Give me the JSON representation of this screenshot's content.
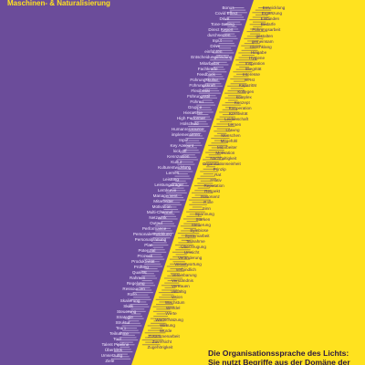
{
  "heading_top": "Maschinen- & Naturalisierung",
  "colors": {
    "purple": "#6b4c9a",
    "yellow": "#ffe21f",
    "light_text": "#f3e8ff",
    "dark_text": "#4a2f7a",
    "headline_text": "#2b1740"
  },
  "left_words": [
    "Bonus",
    "Covid Effect",
    "Drive",
    "Tone-Setting",
    "Direct Report",
    "durchsetzen",
    "Input",
    "Drive",
    "einführen",
    "Entscheidungsfindung",
    "Mitarbeiter",
    "Fachkräfte",
    "Feedback",
    "Führungskultur",
    "Führungskraft",
    "Flexibilität",
    "Führungsstil",
    "Führen",
    "Gruppe",
    "Hierarchie",
    "High Performer",
    "Holschuld",
    "Humanressource",
    "implementieren",
    "Input",
    "Key Account",
    "kick-off",
    "Kennzahlen",
    "Kultur",
    "Kulturentwicklung",
    "Lernen",
    "Leistung",
    "Leistungsträger",
    "Lernkurve",
    "Management",
    "Mitarbeiter",
    "Motivation",
    "Multi-Channel",
    "Netzwerk",
    "Output",
    "Performance",
    "Personalentwicklung",
    "Personalplanung",
    "Plan",
    "Potenzial",
    "Prozess",
    "Produktivität",
    "Prüfung",
    "Qualität",
    "Rahmen",
    "Regelung",
    "Ressourcen",
    "Rolle",
    "Skalierung",
    "Skills",
    "Steuerung",
    "Strategie",
    "Struktur",
    "Team",
    "Teilnahme",
    "Tool",
    "Talent Pipeline",
    "Überblick",
    "Umsetzung",
    "Ziele"
  ],
  "right_words": [
    "Entwicklung",
    "Ergänzung",
    "Einbinden",
    "Bedarfe",
    "Führungsarbeit",
    "gestalten",
    "gemeinsam",
    "Gleichklang",
    "Hingabe",
    "Hygiene",
    "Inspiration",
    "Integrität",
    "Interesse",
    "Ist-Ist",
    "Kapazität",
    "Kollegen",
    "komplex",
    "Konzept",
    "Kooperation",
    "Kreativität",
    "Leidenschaft",
    "Lernen",
    "Lösung",
    "Menschen",
    "Mitgefühl",
    "Mitarbeiter",
    "Motivation",
    "Nachhaltigkeit",
    "Organisationseinheit",
    "Prinzip",
    "Rat",
    "relativ",
    "Reputation",
    "Respekt",
    "Resonanz",
    "Rolle",
    "Sinn",
    "Spannung",
    "Stärken",
    "Steuerung",
    "Symbiose",
    "Systemarbeit",
    "Teilnahme",
    "Überzeugung",
    "Umsicht",
    "Veränderung",
    "Verantwortung",
    "verbindlich",
    "Vereinbarung",
    "Verständnis",
    "Vertrauen",
    "vielfältig",
    "Vision",
    "Wachstum",
    "Wandel",
    "Werte",
    "Wertschätzung",
    "Wirkung",
    "Würde",
    "Zusammenarbeit",
    "Zuversicht",
    "Zugehörigkeit"
  ],
  "headline_lines": [
    "Die Organisationssprache des Lichts:",
    "Sie nutzt Begriffe aus der Domäne der"
  ]
}
